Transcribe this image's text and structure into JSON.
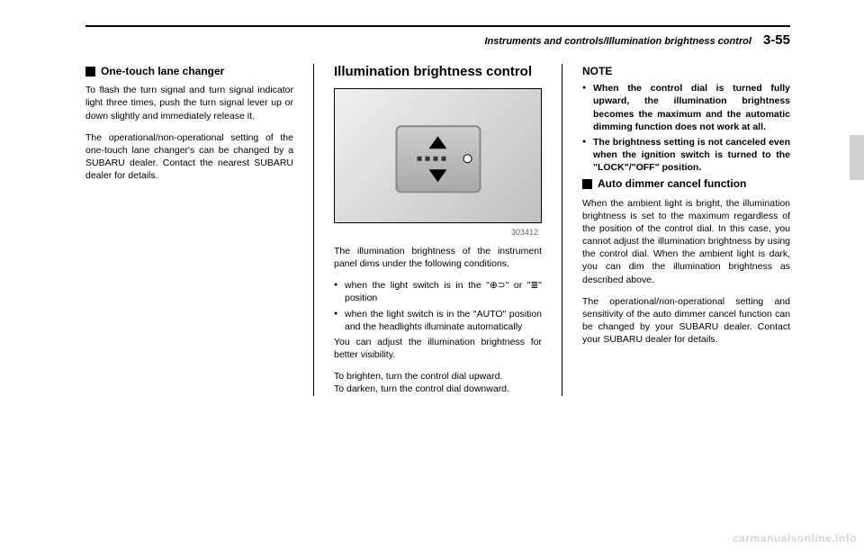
{
  "header": {
    "breadcrumb": "Instruments and controls/Illumination brightness control",
    "pageNumber": "3-55"
  },
  "col1": {
    "heading1": "One-touch lane changer",
    "para1": "To flash the turn signal and turn signal indicator light three times, push the turn signal lever up or down slightly and immediately release it.",
    "para2": "The operational/non-operational setting of the one-touch lane changer's can be changed by a SUBARU dealer. Contact the nearest SUBARU dealer for details."
  },
  "col2": {
    "bigHeading": "Illumination brightness control",
    "figureLabel": "303412",
    "para1": "The illumination brightness of the instrument panel dims under the following conditions.",
    "bullet1": "when the light switch is in the \"⊕⊃\" or \"≣\" position",
    "bullet2": "when the light switch is in the \"AUTO\" position and the headlights illuminate automatically",
    "para2": "You can adjust the illumination brightness for better visibility.",
    "para3": "To brighten, turn the control dial upward.",
    "para4": "To darken, turn the control dial downward."
  },
  "col3": {
    "noteTitle": "NOTE",
    "noteBullet1": "When the control dial is turned fully upward, the illumination brightness becomes the maximum and the automatic dimming function does not work at all.",
    "noteBullet2": "The brightness setting is not canceled even when the ignition switch is turned to the \"LOCK\"/\"OFF\" position.",
    "heading2": "Auto dimmer cancel function",
    "para1": "When the ambient light is bright, the illumination brightness is set to the maximum regardless of the position of the control dial. In this case, you cannot adjust the illumination brightness by using the control dial. When the ambient light is dark, you can dim the illumination brightness as described above.",
    "para2": "The operational/non-operational setting and sensitivity of the auto dimmer cancel function can be changed by your SUBARU dealer. Contact your SUBARU dealer for details."
  },
  "watermark": "carmanualsonline.info"
}
